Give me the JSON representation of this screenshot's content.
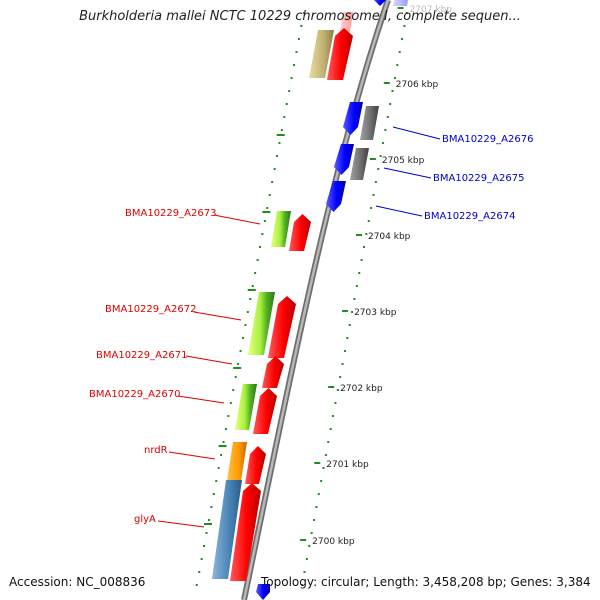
{
  "title": "Burkholderia mallei NCTC 10229 chromosome I, complete sequen...",
  "footer": {
    "accession": "Accession: NC_008836",
    "summary": "Topology: circular; Length: 3,458,208 bp; Genes: 3,384"
  },
  "colors": {
    "backbone": "#9a9a9a",
    "tick_green": "#1f8f1f",
    "forward_gene": "#ff0000",
    "reverse_gene": "#0000ff",
    "gray_gene": "#707070",
    "label_red": "#dd0000",
    "label_blue": "#0000cc"
  },
  "scale_labels": [
    "2707 kbp",
    "2706 kbp",
    "2705 kbp",
    "2704 kbp",
    "2703 kbp",
    "2702 kbp",
    "2701 kbp",
    "2700 kbp"
  ],
  "gene_labels": [
    {
      "text": "BMA10229_A2676",
      "side": "right",
      "color": "#0000cc"
    },
    {
      "text": "BMA10229_A2675",
      "side": "right",
      "color": "#0000cc"
    },
    {
      "text": "BMA10229_A2674",
      "side": "right",
      "color": "#0000cc"
    },
    {
      "text": "BMA10229_A2673",
      "side": "left",
      "color": "#dd0000"
    },
    {
      "text": "BMA10229_A2672",
      "side": "left",
      "color": "#dd0000"
    },
    {
      "text": "BMA10229_A2671",
      "side": "left",
      "color": "#dd0000"
    },
    {
      "text": "BMA10229_A2670",
      "side": "left",
      "color": "#dd0000"
    },
    {
      "text": "nrdR",
      "side": "left",
      "color": "#dd0000"
    },
    {
      "text": "glyA",
      "side": "left",
      "color": "#dd0000"
    }
  ]
}
